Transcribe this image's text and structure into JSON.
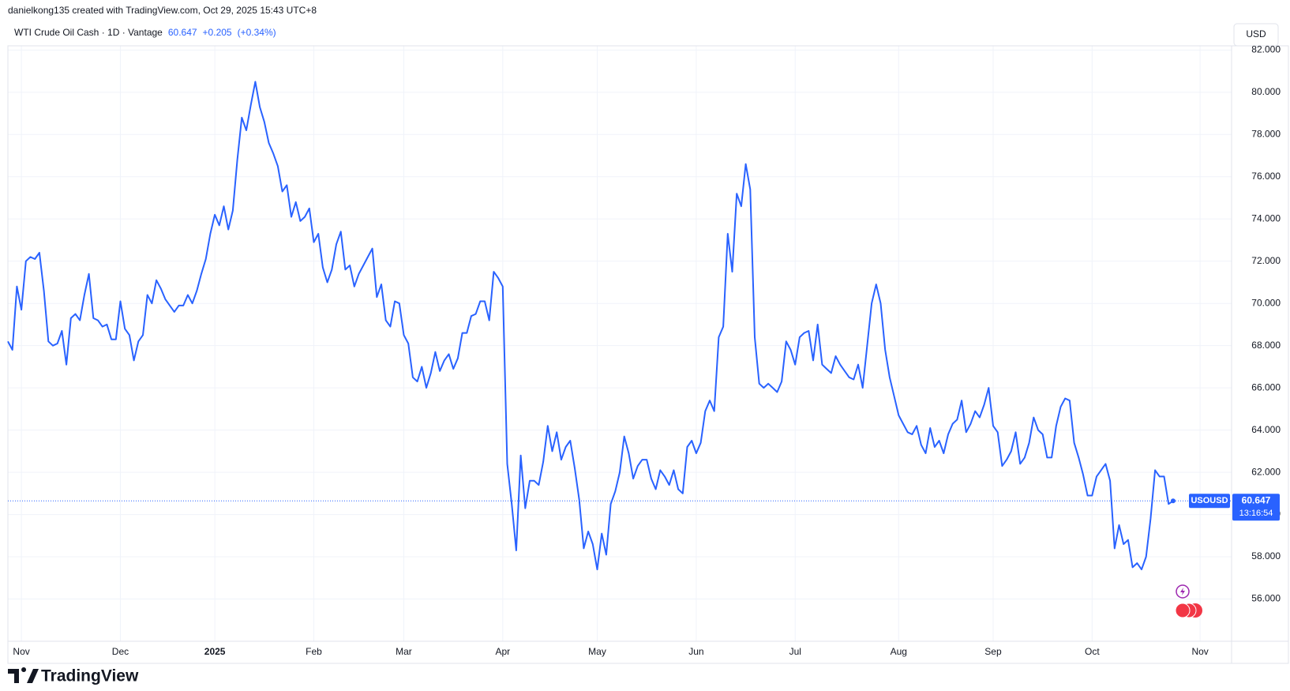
{
  "header": {
    "caption": "danielkong135 created with TradingView.com, Oct 29, 2025 15:43 UTC+8"
  },
  "legend": {
    "symbol": "WTI Crude Oil Cash · 1D · Vantage",
    "price": 60.647,
    "change": "+0.205",
    "change_pct": "(+0.34%)"
  },
  "currency_button": "USD",
  "price_tag": {
    "symbol": "USOUSD",
    "value": 60.647,
    "countdown": "13:16:54"
  },
  "logo": "TradingView",
  "chart_data": {
    "type": "line",
    "series": [
      {
        "name": "USOUSD",
        "color": "#2962ff",
        "values": [
          68.2,
          67.8,
          70.8,
          69.7,
          72.0,
          72.2,
          72.1,
          72.4,
          70.6,
          68.2,
          68.0,
          68.1,
          68.7,
          67.1,
          69.3,
          69.5,
          69.2,
          70.4,
          71.4,
          69.3,
          69.2,
          68.9,
          69.0,
          68.3,
          68.3,
          70.1,
          68.8,
          68.5,
          67.3,
          68.2,
          68.5,
          70.4,
          70.0,
          71.1,
          70.7,
          70.2,
          69.9,
          69.6,
          69.9,
          69.9,
          70.4,
          70.0,
          70.6,
          71.4,
          72.1,
          73.3,
          74.2,
          73.7,
          74.6,
          73.5,
          74.4,
          76.8,
          78.8,
          78.2,
          79.4,
          80.5,
          79.3,
          78.6,
          77.6,
          77.1,
          76.5,
          75.3,
          75.6,
          74.1,
          74.8,
          73.9,
          74.1,
          74.5,
          72.9,
          73.3,
          71.7,
          71.0,
          71.6,
          72.8,
          73.4,
          71.6,
          71.8,
          70.8,
          71.4,
          71.8,
          72.2,
          72.6,
          70.3,
          70.9,
          69.2,
          68.9,
          70.1,
          70.0,
          68.5,
          68.1,
          66.5,
          66.3,
          67.0,
          66.0,
          66.7,
          67.7,
          66.8,
          67.3,
          67.6,
          66.9,
          67.4,
          68.6,
          68.6,
          69.4,
          69.5,
          70.1,
          70.1,
          69.2,
          71.5,
          71.2,
          70.8,
          62.4,
          60.5,
          58.3,
          62.8,
          60.3,
          61.6,
          61.6,
          61.4,
          62.5,
          64.2,
          63.0,
          63.9,
          62.6,
          63.2,
          63.5,
          62.2,
          60.7,
          58.4,
          59.2,
          58.6,
          57.4,
          59.1,
          58.1,
          60.5,
          61.1,
          62.0,
          63.7,
          62.9,
          61.7,
          62.3,
          62.6,
          62.6,
          61.7,
          61.2,
          62.1,
          61.8,
          61.4,
          62.1,
          61.2,
          61.0,
          63.2,
          63.5,
          62.9,
          63.4,
          64.9,
          65.4,
          64.9,
          68.4,
          68.9,
          73.3,
          71.5,
          75.2,
          74.6,
          76.6,
          75.4,
          68.4,
          66.2,
          66.0,
          66.2,
          66.0,
          65.8,
          66.3,
          68.2,
          67.8,
          67.1,
          68.4,
          68.6,
          68.7,
          67.3,
          69.0,
          67.1,
          66.9,
          66.7,
          67.5,
          67.1,
          66.8,
          66.5,
          66.4,
          67.1,
          66.0,
          68.0,
          70.0,
          70.9,
          70.0,
          67.8,
          66.5,
          65.6,
          64.7,
          64.3,
          63.9,
          63.8,
          64.2,
          63.3,
          62.9,
          64.1,
          63.2,
          63.5,
          62.9,
          63.8,
          64.3,
          64.5,
          65.4,
          63.9,
          64.3,
          64.9,
          64.6,
          65.2,
          66.0,
          64.2,
          63.9,
          62.3,
          62.6,
          63.0,
          63.9,
          62.4,
          62.7,
          63.4,
          64.6,
          64.0,
          63.8,
          62.7,
          62.7,
          64.2,
          65.1,
          65.5,
          65.4,
          63.4,
          62.7,
          61.9,
          60.9,
          60.9,
          61.8,
          62.1,
          62.4,
          61.6,
          58.4,
          59.5,
          58.6,
          58.8,
          57.5,
          57.7,
          57.4,
          58.0,
          59.8,
          62.1,
          61.8,
          61.8,
          60.5,
          60.647
        ]
      }
    ],
    "last_price": 60.647,
    "xlim": [
      0,
      272
    ],
    "xticks": [
      {
        "value": 3,
        "label": "Nov"
      },
      {
        "value": 25,
        "label": "Dec"
      },
      {
        "value": 46,
        "label": "2025",
        "bold": true
      },
      {
        "value": 68,
        "label": "Feb"
      },
      {
        "value": 88,
        "label": "Mar"
      },
      {
        "value": 110,
        "label": "Apr"
      },
      {
        "value": 131,
        "label": "May"
      },
      {
        "value": 153,
        "label": "Jun"
      },
      {
        "value": 175,
        "label": "Jul"
      },
      {
        "value": 198,
        "label": "Aug"
      },
      {
        "value": 219,
        "label": "Sep"
      },
      {
        "value": 241,
        "label": "Oct"
      },
      {
        "value": 265,
        "label": "Nov"
      }
    ],
    "ylim": [
      54,
      82.2
    ],
    "yticks": [
      {
        "value": 56,
        "label": "56.000"
      },
      {
        "value": 58,
        "label": "58.000"
      },
      {
        "value": 60,
        "label": "60.000"
      },
      {
        "value": 62,
        "label": "62.000"
      },
      {
        "value": 64,
        "label": "64.000"
      },
      {
        "value": 66,
        "label": "66.000"
      },
      {
        "value": 68,
        "label": "68.000"
      },
      {
        "value": 70,
        "label": "70.000"
      },
      {
        "value": 72,
        "label": "72.000"
      },
      {
        "value": 74,
        "label": "74.000"
      },
      {
        "value": 76,
        "label": "76.000"
      },
      {
        "value": 78,
        "label": "78.000"
      },
      {
        "value": 80,
        "label": "80.000"
      },
      {
        "value": 82,
        "label": "82.000"
      }
    ],
    "grid": true
  }
}
